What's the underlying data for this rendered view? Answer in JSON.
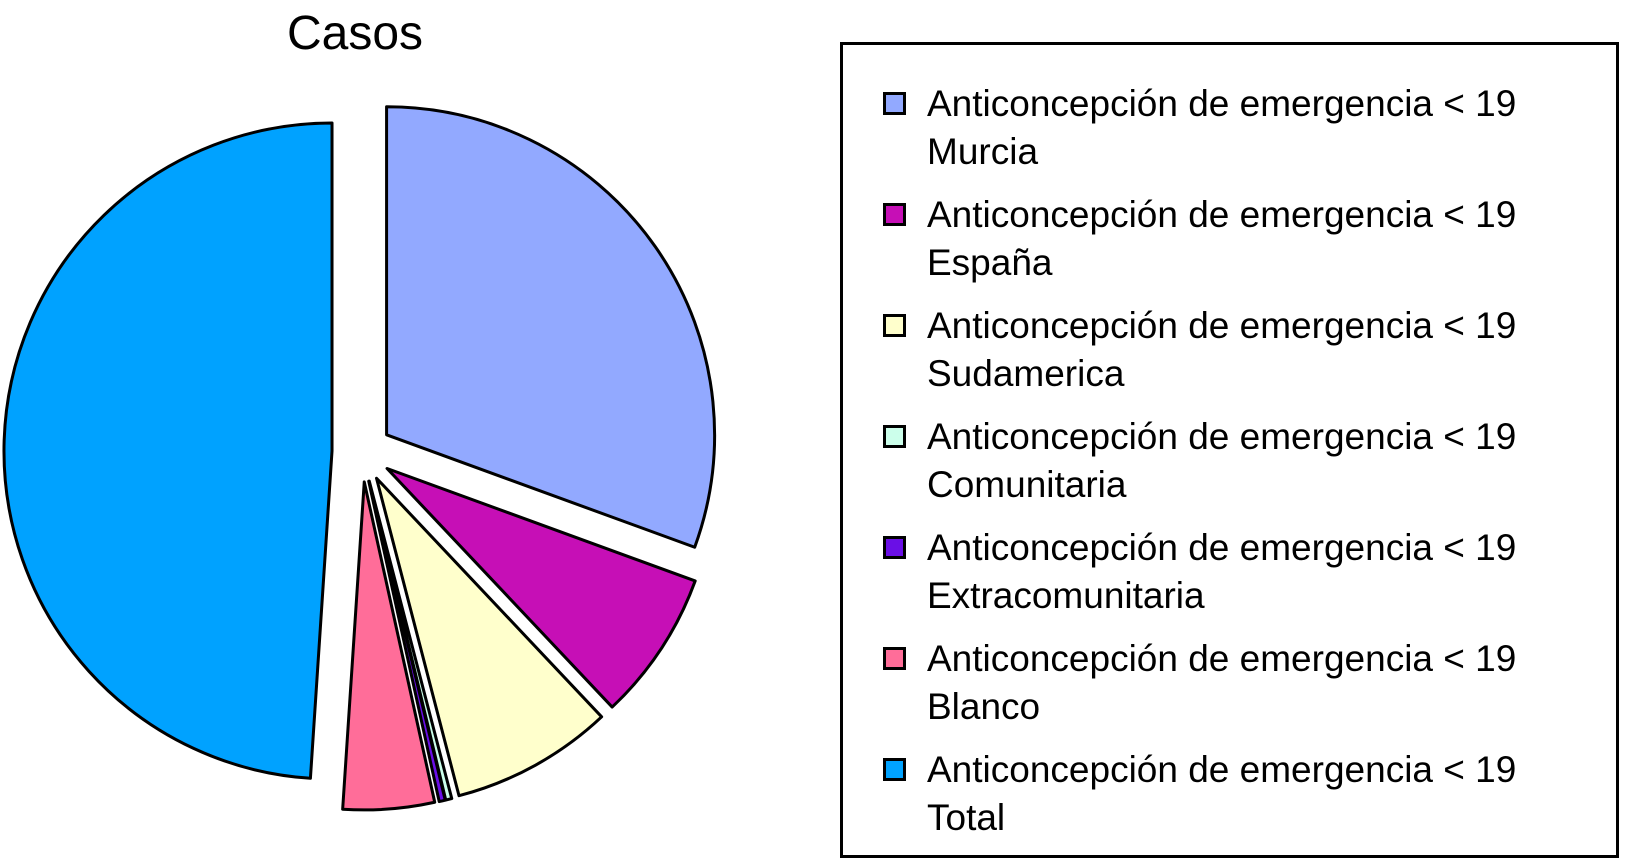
{
  "chart_data": {
    "type": "pie",
    "title": "Casos",
    "legend_position": "right",
    "categories": [
      "Anticoncepción de emergencia < 19 Murcia",
      "Anticoncepción de emergencia < 19 España",
      "Anticoncepción de emergencia < 19 Sudamerica",
      "Anticoncepción de emergencia < 19 Comunitaria",
      "Anticoncepción de emergencia < 19 Extracomunitaria",
      "Anticoncepción de emergencia < 19 Blanco",
      "Anticoncepción de emergencia < 19 Total"
    ],
    "values": [
      30.6,
      7.4,
      8.0,
      0.3,
      0.3,
      4.5,
      49.0
    ],
    "colors": [
      "#92A9FF",
      "#C60FB6",
      "#FFFFCC",
      "#CCFFEB",
      "#6A0FE6",
      "#FF6D99",
      "#00A2FF"
    ],
    "exploded": true
  },
  "legend": {
    "items": [
      {
        "line1": "Anticoncepción de emergencia < 19",
        "line2": "Murcia"
      },
      {
        "line1": "Anticoncepción de emergencia < 19",
        "line2": "España"
      },
      {
        "line1": "Anticoncepción de emergencia < 19",
        "line2": "Sudamerica"
      },
      {
        "line1": "Anticoncepción de emergencia < 19",
        "line2": "Comunitaria"
      },
      {
        "line1": "Anticoncepción de emergencia < 19",
        "line2": "Extracomunitaria"
      },
      {
        "line1": "Anticoncepción de emergencia < 19",
        "line2": "Blanco"
      },
      {
        "line1": "Anticoncepción de emergencia < 19",
        "line2": "Total"
      }
    ]
  }
}
